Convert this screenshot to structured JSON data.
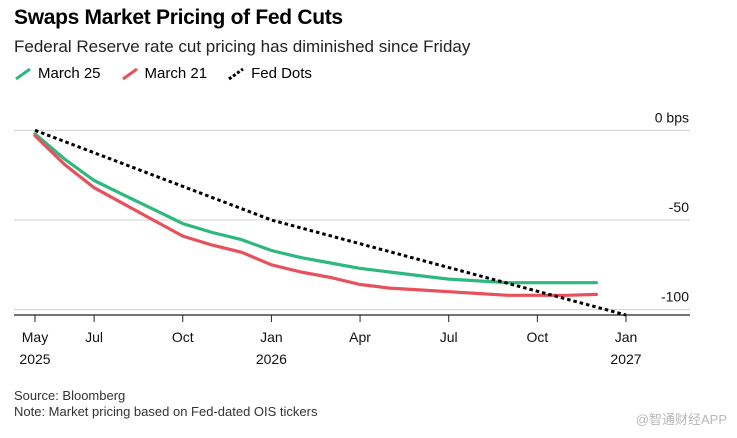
{
  "header": {
    "title": "Swaps Market Pricing of Fed Cuts",
    "subtitle": "Federal Reserve rate cut pricing has diminished since Friday"
  },
  "legend": [
    {
      "label": "March 25",
      "color": "#2db87d",
      "style": "solid"
    },
    {
      "label": "March 21",
      "color": "#e8505b",
      "style": "solid"
    },
    {
      "label": "Fed Dots",
      "color": "#000000",
      "style": "dotted"
    }
  ],
  "footer": {
    "source": "Source: Bloomberg",
    "note": "Note: Market pricing based on Fed-dated OIS tickers"
  },
  "watermark": "@智通财经APP",
  "chart_data": {
    "type": "line",
    "x": [
      "2025-05",
      "2025-06",
      "2025-07",
      "2025-08",
      "2025-09",
      "2025-10",
      "2025-11",
      "2025-12",
      "2026-01",
      "2026-02",
      "2026-03",
      "2026-04",
      "2026-05",
      "2026-06",
      "2026-07",
      "2026-08",
      "2026-09",
      "2026-10",
      "2026-11",
      "2026-12"
    ],
    "x_tick_labels": [
      {
        "x": "2025-05",
        "label": "May",
        "year": "2025"
      },
      {
        "x": "2025-07",
        "label": "Jul",
        "year": ""
      },
      {
        "x": "2025-10",
        "label": "Oct",
        "year": ""
      },
      {
        "x": "2026-01",
        "label": "Jan",
        "year": "2026"
      },
      {
        "x": "2026-04",
        "label": "Apr",
        "year": ""
      },
      {
        "x": "2026-07",
        "label": "Jul",
        "year": ""
      },
      {
        "x": "2026-10",
        "label": "Oct",
        "year": ""
      },
      {
        "x": "2027-01",
        "label": "Jan",
        "year": "2027"
      }
    ],
    "y_ticks": [
      {
        "value": 0,
        "label": "0 bps"
      },
      {
        "value": -50,
        "label": "-50"
      },
      {
        "value": -100,
        "label": "-100"
      }
    ],
    "ylim": [
      -103,
      8
    ],
    "xlim": [
      "2025-05",
      "2027-01"
    ],
    "series": [
      {
        "name": "March 25",
        "color": "#2db87d",
        "values": [
          -2,
          -16,
          -28,
          -36,
          -44,
          -52,
          -57,
          -61,
          -67,
          -71,
          -74,
          -77,
          -79,
          -81,
          -83,
          -84,
          -85,
          -85,
          -85,
          -85
        ]
      },
      {
        "name": "March 21",
        "color": "#e8505b",
        "values": [
          -3,
          -19,
          -32,
          -41,
          -50,
          -59,
          -64,
          -68,
          -75,
          -79,
          -82,
          -86,
          -88,
          -89,
          -90,
          -91,
          -92,
          -92,
          -92,
          -91.5
        ]
      },
      {
        "name": "Fed Dots",
        "color": "#000000",
        "dashed": true,
        "points": [
          {
            "x": "2025-05",
            "y": 0
          },
          {
            "x": "2026-01",
            "y": -50
          },
          {
            "x": "2027-01",
            "y": -103
          }
        ]
      }
    ],
    "grid": true
  }
}
